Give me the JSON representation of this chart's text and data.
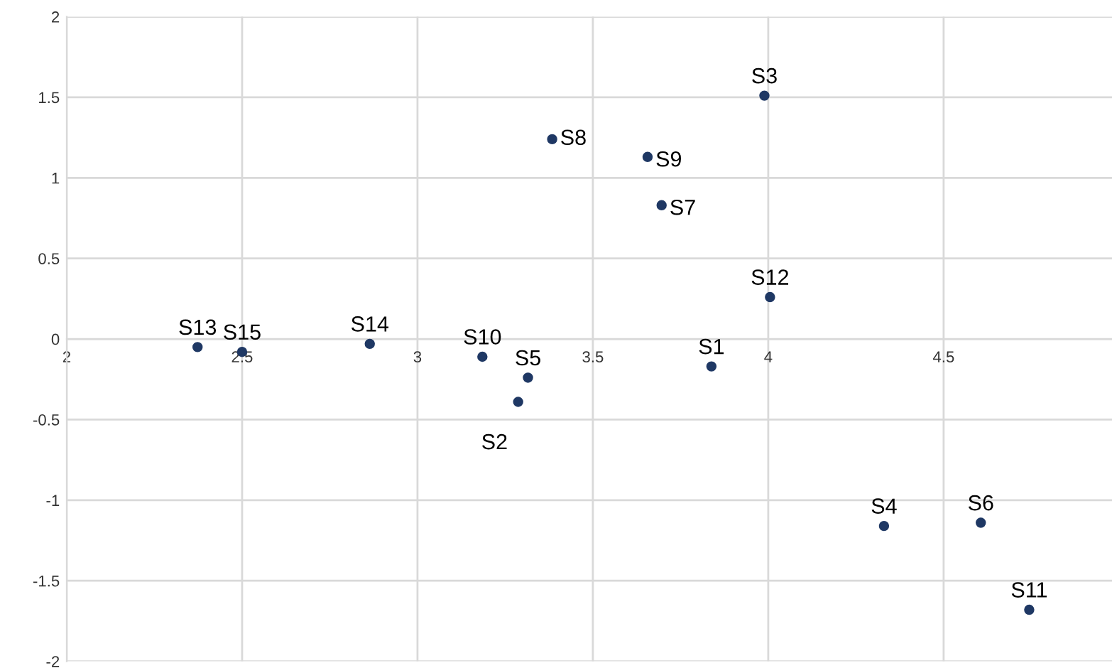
{
  "chart_data": {
    "type": "scatter",
    "color": "#1f3864",
    "marker": "circle",
    "grid": true,
    "x": [
      3.838,
      3.287,
      3.989,
      4.33,
      3.315,
      4.606,
      3.696,
      3.384,
      3.656,
      3.185,
      4.744,
      4.005,
      2.373,
      2.864,
      2.5
    ],
    "values": [
      -0.17,
      -0.39,
      1.51,
      -1.16,
      -0.24,
      -1.14,
      0.83,
      1.24,
      1.13,
      -0.11,
      -1.68,
      0.26,
      -0.05,
      -0.03,
      -0.08
    ],
    "annotations": [
      {
        "text": "S1",
        "x": 3.838,
        "y": -0.17
      },
      {
        "text": "S2",
        "x": 3.287,
        "y": -0.39
      },
      {
        "text": "S3",
        "x": 3.989,
        "y": 1.51
      },
      {
        "text": "S4",
        "x": 4.33,
        "y": -1.16
      },
      {
        "text": "S5",
        "x": 3.315,
        "y": -0.24
      },
      {
        "text": "S6",
        "x": 4.606,
        "y": -1.14
      },
      {
        "text": "S7",
        "x": 3.696,
        "y": 0.83
      },
      {
        "text": "S8",
        "x": 3.384,
        "y": 1.24
      },
      {
        "text": "S9",
        "x": 3.656,
        "y": 1.13
      },
      {
        "text": "S10",
        "x": 3.185,
        "y": -0.11
      },
      {
        "text": "S11",
        "x": 4.744,
        "y": -1.68
      },
      {
        "text": "S12",
        "x": 4.005,
        "y": 0.26
      },
      {
        "text": "S13",
        "x": 2.373,
        "y": -0.05
      },
      {
        "text": "S14",
        "x": 2.864,
        "y": -0.03
      },
      {
        "text": "S15",
        "x": 2.5,
        "y": -0.08
      }
    ],
    "xlim": [
      2,
      4.98
    ],
    "ylim": [
      -2,
      2
    ],
    "xticks": [
      2,
      2.5,
      3,
      3.5,
      4,
      4.5
    ],
    "yticks": [
      -2,
      -1.5,
      -1,
      -0.5,
      0,
      0.5,
      1,
      1.5,
      2
    ]
  }
}
